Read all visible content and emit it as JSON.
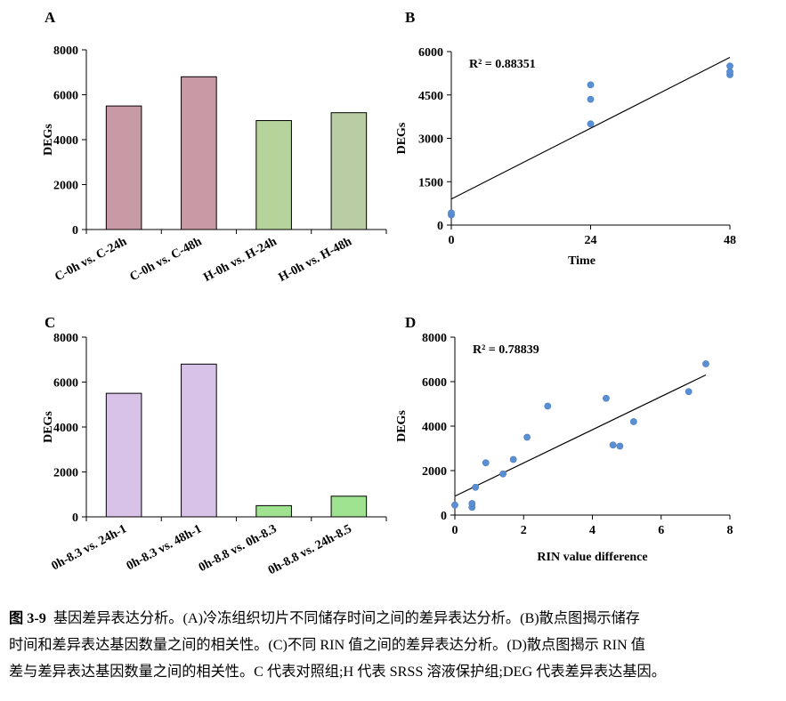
{
  "chart_data": [
    {
      "panel": "A",
      "type": "bar",
      "title": "",
      "xlabel": "",
      "ylabel": "DEGs",
      "ylim": [
        0,
        8000
      ],
      "yticks": [
        0,
        2000,
        4000,
        6000,
        8000
      ],
      "ytick_labels": [
        "0",
        "2000",
        "4000",
        "6000",
        "8000"
      ],
      "categories": [
        "C-0h vs. C-24h",
        "C-0h vs. C-48h",
        "H-0h vs. H-24h",
        "H-0h vs. H-48h"
      ],
      "values": [
        5500,
        6800,
        4850,
        5200
      ],
      "colors": [
        "#c89aa6",
        "#c89aa6",
        "#b5d39b",
        "#b9cca3"
      ]
    },
    {
      "panel": "B",
      "type": "scatter",
      "title": "",
      "xlabel": "Time",
      "ylabel": "DEGs",
      "xlim": [
        0,
        48
      ],
      "ylim": [
        0,
        6000
      ],
      "xticks": [
        0,
        24,
        48
      ],
      "xtick_labels": [
        "0",
        "24",
        "48"
      ],
      "yticks": [
        0,
        1500,
        3000,
        4500,
        6000
      ],
      "ytick_labels": [
        "0",
        "1500",
        "3000",
        "4500",
        "6000"
      ],
      "points": [
        {
          "x": 0,
          "y": 350
        },
        {
          "x": 0,
          "y": 420
        },
        {
          "x": 24,
          "y": 3500
        },
        {
          "x": 24,
          "y": 4350
        },
        {
          "x": 24,
          "y": 4850
        },
        {
          "x": 48,
          "y": 5200
        },
        {
          "x": 48,
          "y": 5300
        },
        {
          "x": 48,
          "y": 5500
        }
      ],
      "trendline": {
        "x": [
          0,
          48
        ],
        "y": [
          900,
          5800
        ]
      },
      "annotation": "R² = 0.88351",
      "point_color": "#5b8fd4"
    },
    {
      "panel": "C",
      "type": "bar",
      "title": "",
      "xlabel": "",
      "ylabel": "DEGs",
      "ylim": [
        0,
        8000
      ],
      "yticks": [
        0,
        2000,
        4000,
        6000,
        8000
      ],
      "ytick_labels": [
        "0",
        "2000",
        "4000",
        "6000",
        "8000"
      ],
      "categories": [
        "0h-8.3 vs. 24h-1",
        "0h-8.3 vs. 48h-1",
        "0h-8.8 vs. 0h-8.3",
        "0h-8.8 vs. 24h-8.5"
      ],
      "values": [
        5500,
        6800,
        500,
        920
      ],
      "colors": [
        "#d8c2e8",
        "#d8c2e8",
        "#9fe28f",
        "#9fe28f"
      ]
    },
    {
      "panel": "D",
      "type": "scatter",
      "title": "",
      "xlabel": "RIN value difference",
      "ylabel": "DEGs",
      "xlim": [
        0,
        8
      ],
      "ylim": [
        0,
        8000
      ],
      "xticks": [
        0,
        2,
        4,
        6,
        8
      ],
      "xtick_labels": [
        "0",
        "2",
        "4",
        "6",
        "8"
      ],
      "yticks": [
        0,
        2000,
        4000,
        6000,
        8000
      ],
      "ytick_labels": [
        "0",
        "2000",
        "4000",
        "6000",
        "8000"
      ],
      "points": [
        {
          "x": 0.0,
          "y": 450
        },
        {
          "x": 0.5,
          "y": 350
        },
        {
          "x": 0.5,
          "y": 520
        },
        {
          "x": 0.6,
          "y": 1250
        },
        {
          "x": 0.9,
          "y": 2350
        },
        {
          "x": 1.4,
          "y": 1850
        },
        {
          "x": 1.7,
          "y": 2500
        },
        {
          "x": 2.1,
          "y": 3500
        },
        {
          "x": 2.7,
          "y": 4900
        },
        {
          "x": 4.4,
          "y": 5250
        },
        {
          "x": 4.6,
          "y": 3150
        },
        {
          "x": 4.8,
          "y": 3100
        },
        {
          "x": 5.2,
          "y": 4200
        },
        {
          "x": 6.8,
          "y": 5550
        },
        {
          "x": 7.3,
          "y": 6800
        }
      ],
      "trendline": {
        "x": [
          0,
          7.3
        ],
        "y": [
          850,
          6300
        ]
      },
      "annotation": "R² = 0.78839",
      "point_color": "#5b8fd4"
    }
  ],
  "caption": {
    "label": "图 3-9",
    "lines": [
      "基因差异表达分析。(A)冷冻组织切片不同储存时间之间的差异表达分析。(B)散点图揭示储存",
      "时间和差异表达基因数量之间的相关性。(C)不同 RIN 值之间的差异表达分析。(D)散点图揭示 RIN 值",
      "差与差异表达基因数量之间的相关性。C 代表对照组;H 代表 SRSS 溶液保护组;DEG 代表差异表达基因。"
    ]
  }
}
